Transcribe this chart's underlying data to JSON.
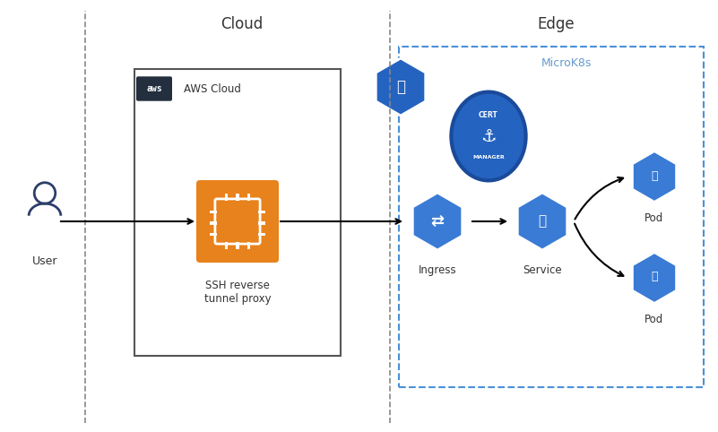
{
  "title_cloud": "Cloud",
  "title_edge": "Edge",
  "title_microk8s": "MicroK8s",
  "label_user": "User",
  "label_ssh": "SSH reverse\ntunnel proxy",
  "label_ingress": "Ingress",
  "label_service": "Service",
  "label_pod": "Pod",
  "label_aws": "AWS Cloud",
  "bg_color": "#ffffff",
  "text_color": "#333333",
  "blue_dark": "#2c3e6b",
  "blue_main": "#2563C0",
  "blue_light": "#4a90d9",
  "orange_main": "#e67e22",
  "orange_dark": "#d35400",
  "microk8s_label_color": "#6699cc",
  "dashed_border_color": "#4a90d9",
  "aws_box_color": "#232f3e",
  "line_color": "#333333"
}
